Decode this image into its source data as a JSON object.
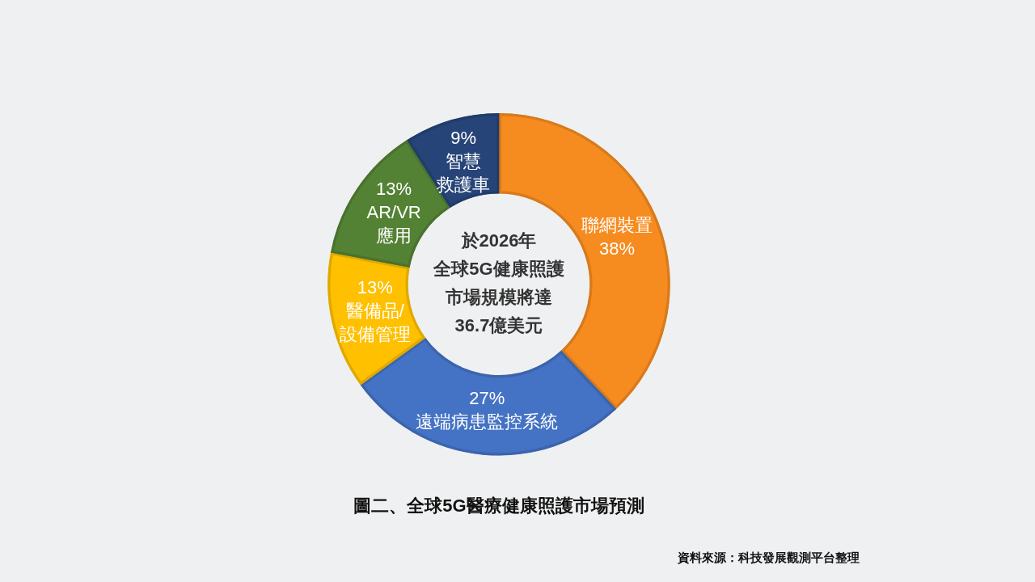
{
  "chart_data": {
    "type": "donut",
    "title": "圖二、全球5G醫療健康照護市場預測",
    "categories": [
      "聯網裝置",
      "遠端病患監控系統",
      "醫備品/設備管理",
      "AR/VR應用",
      "智慧救護車"
    ],
    "values": [
      38,
      27,
      13,
      13,
      9
    ],
    "colors": [
      "#f68b1f",
      "#4472c4",
      "#ffc000",
      "#548235",
      "#264478"
    ],
    "value_labels": [
      "38%",
      "27%",
      "13%",
      "13%",
      "9%"
    ],
    "annotations": [
      "於2026年",
      "全球5G健康照護",
      "市場規模將達",
      "36.7億美元",
      "資料來源：科技發展觀測平台整理"
    ]
  }
}
